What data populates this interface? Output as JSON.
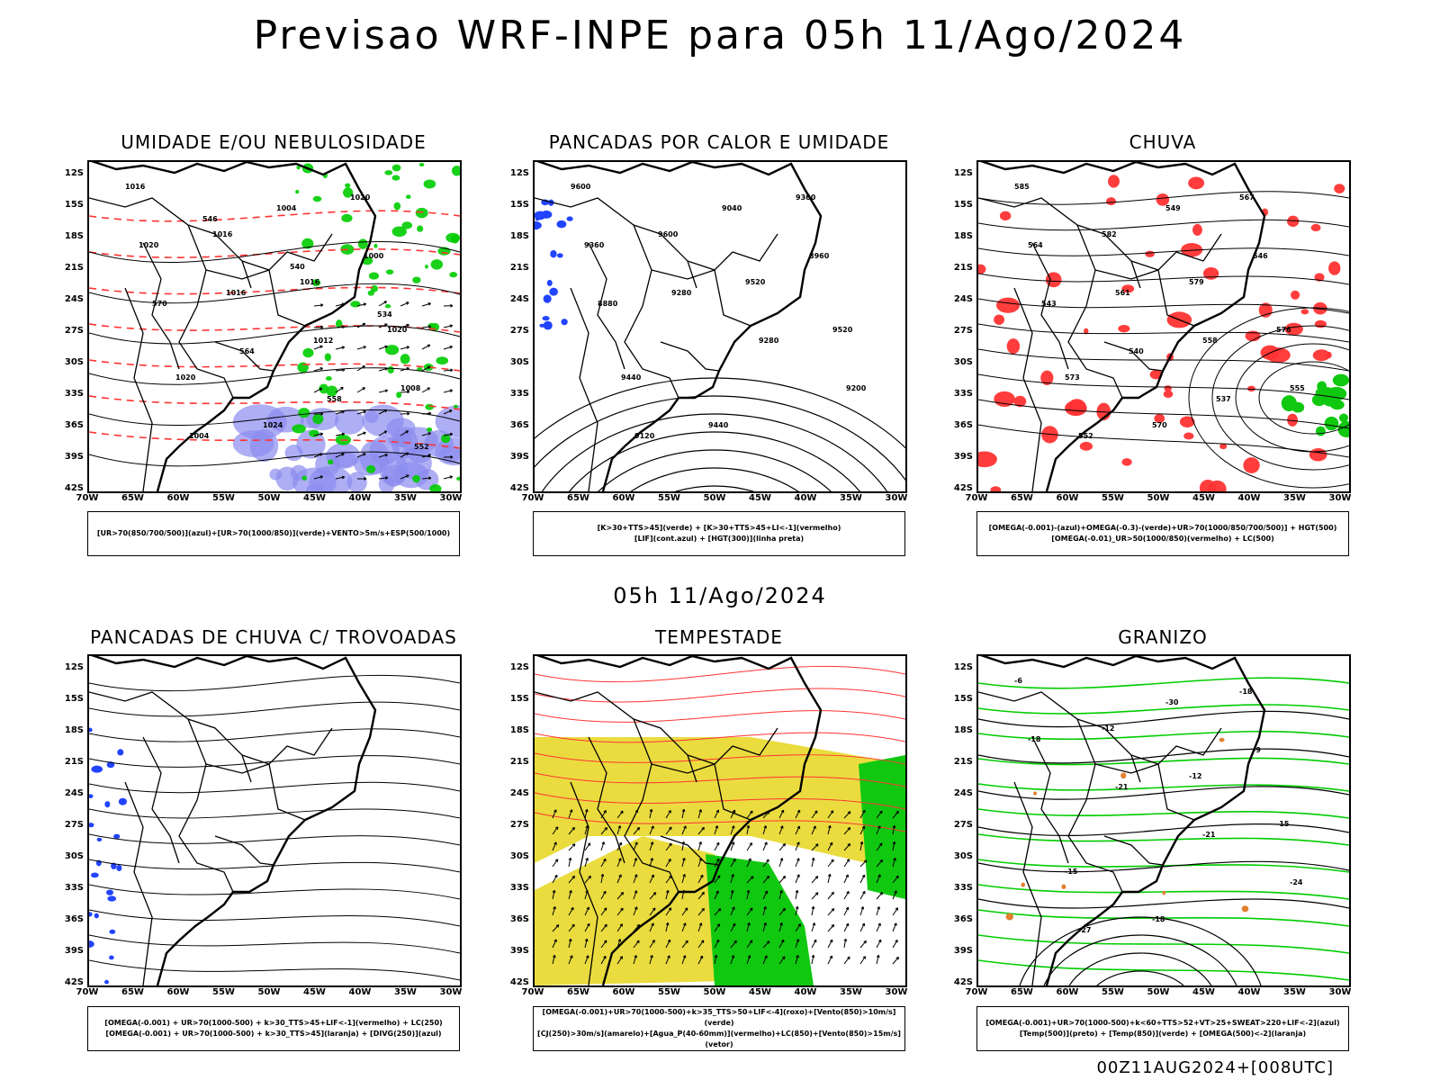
{
  "title": "Previsao WRF-INPE  para 05h 11/Ago/2024",
  "subtitle": "05h 11/Ago/2024",
  "footer": "00Z11AUG2024+[008UTC]",
  "lat_labels": [
    "12S",
    "15S",
    "18S",
    "21S",
    "24S",
    "27S",
    "30S",
    "33S",
    "36S",
    "39S",
    "42S"
  ],
  "lon_labels": [
    "70W",
    "65W",
    "60W",
    "55W",
    "50W",
    "45W",
    "40W",
    "35W",
    "30W"
  ],
  "panels": [
    {
      "title": "UMIDADE E/OU NEBULOSIDADE",
      "legend": [
        "[UR>70(850/700/500)](azul)+[UR>70(1000/850)](verde)+VENTO>5m/s+ESP(500/1000)"
      ],
      "contour_labels": [
        "1016",
        "1016",
        "1016",
        "1020",
        "1020",
        "1024",
        "1020",
        "1020",
        "1016",
        "1012",
        "1008",
        "1004",
        "1004",
        "1000",
        "570",
        "564",
        "558",
        "552",
        "546",
        "540",
        "534"
      ]
    },
    {
      "title": "PANCADAS POR CALOR E UMIDADE",
      "legend": [
        "[K>30+TTS>45](verde) + [K>30+TTS>45+LI<-1](vermelho)",
        "[LIF](cont.azul) + [HGT(300)](linha preta)"
      ],
      "contour_labels": [
        "9600",
        "9600",
        "9520",
        "9520",
        "9440",
        "9440",
        "9360",
        "9360",
        "9280",
        "9280",
        "9200",
        "9120",
        "9040",
        "8960",
        "8880"
      ]
    },
    {
      "title": "CHUVA",
      "legend": [
        "[OMEGA(-0.001)-(azul)+OMEGA(-0.3)-(verde)+UR>70(1000/850/700/500)] + HGT(500)",
        "[OMEGA(-0.01)_UR>50(1000/850)(vermelho) + LC(500)"
      ],
      "contour_labels": [
        "585",
        "582",
        "579",
        "576",
        "573",
        "570",
        "567",
        "564",
        "561",
        "558",
        "555",
        "552",
        "549",
        "546",
        "543",
        "540",
        "537"
      ]
    },
    {
      "title": "PANCADAS DE CHUVA C/ TROVOADAS",
      "legend": [
        "[OMEGA(-0.001) + UR>70(1000-500) + k>30_TTS>45+LIF<-1](vermelho) + LC(250)",
        "[OMEGA(-0.001) + UR>70(1000-500) + k>30_TTS>45](laranja) + [DIVG(250)](azul)"
      ],
      "contour_labels": []
    },
    {
      "title": "TEMPESTADE",
      "legend": [
        "[OMEGA(-0.001)+UR>70(1000-500)+k>35_TTS>50+LIF<-4](roxo)+[Vento(850)>10m/s](verde)",
        "[CJ(250)>30m/s](amarelo)+[Agua_P(40-60mm)](vermelho)+LC(850)+[Vento(850)>15m/s](vetor)"
      ],
      "contour_labels": []
    },
    {
      "title": "GRANIZO",
      "legend": [
        "[OMEGA(-0.001)+UR>70(1000-500)+k<60+TTS>52+VT>25+SWEAT>220+LIF<-2](azul)",
        "[Temp(500)](preto) + [Temp(850)](verde) + [OMEGA(500)<-2](laranja)"
      ],
      "contour_labels": [
        "-6",
        "-12",
        "-12",
        "-15",
        "-15",
        "-18",
        "-18",
        "-18",
        "-21",
        "-21",
        "-24",
        "-27",
        "-30",
        "-9"
      ]
    }
  ],
  "colors": {
    "humidity_blue": "#8c8cf0",
    "humidity_green": "#00cc00",
    "red": "#ff3333",
    "yellow": "#e8d82a",
    "green_fill": "#11c811",
    "blue": "#2244ff",
    "orange": "#e08030"
  }
}
